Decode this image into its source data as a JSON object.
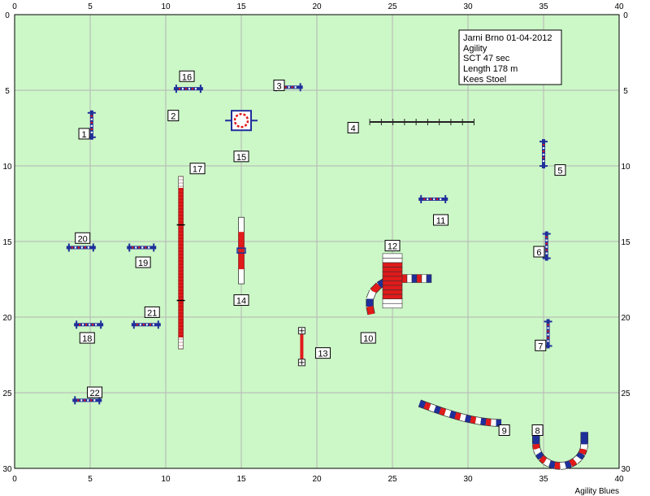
{
  "info": {
    "lines": [
      "Jarni Brno 01-04-2012",
      "Agility",
      "SCT 47 sec",
      "Length 178 m",
      "Kees Stoel"
    ]
  },
  "footer": "Agility Blues",
  "colors": {
    "field": "#ccf7c7",
    "grid": "#b5b5b5",
    "blue": "#1f2f9a",
    "red": "#e11a1a"
  },
  "axes": {
    "x_ticks": [
      "0",
      "5",
      "10",
      "15",
      "20",
      "25",
      "30",
      "35",
      "40"
    ],
    "y_ticks": [
      "0",
      "5",
      "10",
      "15",
      "20",
      "25",
      "30"
    ]
  },
  "obstacles": [
    {
      "n": "1",
      "type": "jump",
      "x": 5.1,
      "y": 7.3,
      "orient": "v",
      "label_x": 4.6,
      "label_y": 7.9
    },
    {
      "n": "2",
      "type": "label",
      "x": 0,
      "y": 0,
      "orient": "h",
      "label_x": 10.5,
      "label_y": 6.7
    },
    {
      "n": "3",
      "type": "jump",
      "x": 18.1,
      "y": 4.8,
      "orient": "h",
      "label_x": 17.5,
      "label_y": 4.7
    },
    {
      "n": "4",
      "type": "walk",
      "x": 26.9,
      "y": 7.1,
      "orient": "h",
      "label_x": 22.4,
      "label_y": 7.5
    },
    {
      "n": "5",
      "type": "jump",
      "x": 35.0,
      "y": 9.2,
      "orient": "v",
      "label_x": 36.1,
      "label_y": 10.3
    },
    {
      "n": "6",
      "type": "jump",
      "x": 35.2,
      "y": 15.3,
      "orient": "v",
      "label_x": 34.7,
      "label_y": 15.7
    },
    {
      "n": "7",
      "type": "jump",
      "x": 35.3,
      "y": 21.1,
      "orient": "v",
      "label_x": 34.8,
      "label_y": 21.9
    },
    {
      "n": "8",
      "type": "tunnel_u",
      "x": 36.0,
      "y": 28.7,
      "orient": "h",
      "label_x": 34.6,
      "label_y": 27.5
    },
    {
      "n": "9",
      "type": "tunnel_c",
      "x": 29.5,
      "y": 26.8,
      "orient": "h",
      "label_x": 32.4,
      "label_y": 27.5
    },
    {
      "n": "10",
      "type": "tunnel_s",
      "x": 24.5,
      "y": 18.0,
      "orient": "h",
      "label_x": 23.4,
      "label_y": 21.4
    },
    {
      "n": "11",
      "type": "jump",
      "x": 27.7,
      "y": 12.2,
      "orient": "h",
      "label_x": 28.2,
      "label_y": 13.6
    },
    {
      "n": "12",
      "type": "table",
      "x": 25.0,
      "y": 17.3,
      "orient": "h",
      "label_x": 25.0,
      "label_y": 15.3
    },
    {
      "n": "13",
      "type": "weave",
      "x": 19.0,
      "y": 22.0,
      "orient": "v",
      "label_x": 20.4,
      "label_y": 22.4
    },
    {
      "n": "14",
      "type": "seesaw",
      "x": 15.0,
      "y": 15.6,
      "orient": "v",
      "label_x": 15.0,
      "label_y": 18.9
    },
    {
      "n": "15",
      "type": "tire",
      "x": 15.0,
      "y": 7.0,
      "orient": "h",
      "label_x": 15.0,
      "label_y": 9.4
    },
    {
      "n": "16",
      "type": "jump",
      "x": 11.5,
      "y": 4.9,
      "orient": "h",
      "label_x": 11.4,
      "label_y": 4.1
    },
    {
      "n": "17",
      "type": "dogwalk",
      "x": 11.0,
      "y": 16.3,
      "orient": "v",
      "label_x": 12.1,
      "label_y": 10.2
    },
    {
      "n": "18",
      "type": "jump",
      "x": 4.9,
      "y": 20.5,
      "orient": "h",
      "label_x": 4.8,
      "label_y": 21.4
    },
    {
      "n": "19",
      "type": "jump",
      "x": 8.4,
      "y": 15.4,
      "orient": "h",
      "label_x": 8.5,
      "label_y": 16.4
    },
    {
      "n": "20",
      "type": "jump",
      "x": 4.4,
      "y": 15.4,
      "orient": "h",
      "label_x": 4.5,
      "label_y": 14.8
    },
    {
      "n": "21",
      "type": "jump",
      "x": 8.7,
      "y": 20.5,
      "orient": "h",
      "label_x": 9.1,
      "label_y": 19.7
    },
    {
      "n": "22",
      "type": "jump",
      "x": 4.8,
      "y": 25.5,
      "orient": "h",
      "label_x": 5.3,
      "label_y": 25.0
    }
  ]
}
